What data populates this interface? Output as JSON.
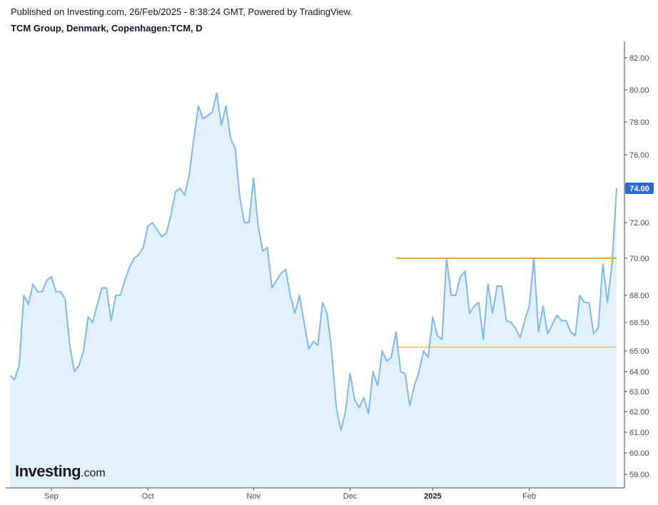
{
  "header": {
    "published": "Published on Investing.com, 26/Feb/2025 - 8:38:24 GMT, Powered by TradingView.",
    "symbol": "TCM Group, Denmark, Copenhagen:TCM, D"
  },
  "logo": {
    "main": "Investing",
    "suffix": ".com"
  },
  "colors": {
    "line": "#7fb8ea",
    "area": "#e1f0fa",
    "support_resistance": "#f5a623",
    "last_price_badge": "#2d6ad6",
    "axis": "#4a4a4a"
  },
  "chart_data": {
    "type": "area",
    "title": "TCM Group, Denmark, Copenhagen:TCM, D",
    "xlabel": "",
    "ylabel": "",
    "x_tick_labels": [
      {
        "label": "Sep",
        "index": 9,
        "bold": false
      },
      {
        "label": "Oct",
        "index": 30,
        "bold": false
      },
      {
        "label": "Nov",
        "index": 53,
        "bold": false
      },
      {
        "label": "Dec",
        "index": 74,
        "bold": false
      },
      {
        "label": "2025",
        "index": 92,
        "bold": true
      },
      {
        "label": "Feb",
        "index": 113,
        "bold": false
      }
    ],
    "y_ticks": [
      {
        "label": "82.00",
        "value": 82.0
      },
      {
        "label": "80.00",
        "value": 80.0
      },
      {
        "label": "78.00",
        "value": 78.0
      },
      {
        "label": "76.00",
        "value": 76.0
      },
      {
        "label": "74.00",
        "value": 74.0
      },
      {
        "label": "72.00",
        "value": 72.0
      },
      {
        "label": "70.00",
        "value": 70.0
      },
      {
        "label": "68.00",
        "value": 68.0
      },
      {
        "label": "66.50",
        "value": 66.5
      },
      {
        "label": "65.00",
        "value": 65.0
      },
      {
        "label": "64.00",
        "value": 64.0
      },
      {
        "label": "63.00",
        "value": 63.0
      },
      {
        "label": "62.00",
        "value": 62.0
      },
      {
        "label": "61.00",
        "value": 61.0
      },
      {
        "label": "60.00",
        "value": 60.0
      },
      {
        "label": "59.00",
        "value": 59.0
      }
    ],
    "last_price": {
      "label": "74.00",
      "value": 74.0
    },
    "series": [
      {
        "values": [
          63.8,
          63.6,
          64.3,
          68.0,
          67.5,
          68.6,
          68.2,
          68.2,
          68.8,
          69.0,
          68.2,
          68.2,
          67.8,
          65.3,
          64.0,
          64.3,
          65.0,
          66.8,
          66.5,
          67.5,
          68.4,
          68.4,
          66.6,
          68.0,
          68.0,
          68.8,
          69.5,
          70.0,
          70.2,
          70.6,
          71.8,
          72.0,
          71.6,
          71.2,
          71.4,
          72.4,
          73.8,
          74.0,
          73.6,
          74.8,
          77.0,
          79.0,
          78.2,
          78.4,
          78.6,
          79.8,
          77.8,
          79.0,
          77.0,
          76.4,
          73.5,
          72.0,
          72.0,
          74.6,
          71.8,
          70.4,
          70.6,
          68.4,
          68.8,
          69.2,
          69.4,
          68.0,
          67.0,
          68.0,
          66.5,
          65.1,
          65.5,
          65.3,
          67.6,
          67.0,
          65.0,
          62.2,
          61.1,
          62.0,
          63.9,
          62.6,
          62.2,
          62.7,
          61.9,
          64.0,
          63.3,
          65.0,
          64.5,
          64.7,
          66.0,
          64.0,
          63.9,
          62.3,
          63.3,
          64.0,
          65.0,
          64.7,
          66.8,
          65.8,
          65.6,
          70.0,
          68.0,
          68.0,
          69.0,
          69.3,
          67.0,
          67.4,
          67.6,
          65.6,
          68.6,
          67.0,
          68.5,
          68.5,
          66.6,
          66.5,
          66.2,
          65.7,
          66.6,
          67.4,
          70.0,
          66.0,
          67.4,
          65.9,
          66.4,
          66.9,
          66.6,
          66.6,
          66.0,
          65.8,
          68.0,
          67.6,
          67.6,
          65.9,
          66.2,
          69.7,
          67.6,
          69.7,
          74.0
        ]
      }
    ],
    "support_resistance": [
      {
        "level": 70.0,
        "start_index": 84
      },
      {
        "level": 65.2,
        "start_index": 84
      }
    ]
  }
}
